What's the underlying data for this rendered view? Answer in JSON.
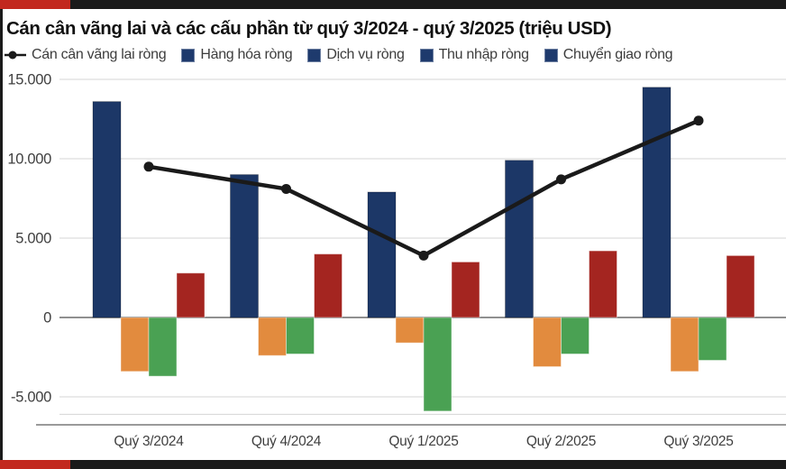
{
  "accent": {
    "red": "#c2281e",
    "black": "#1a1a1a"
  },
  "header": {
    "title": "Cán cân vãng lai và các cấu phần từ quý 3/2024 - quý 3/2025 (triệu USD)"
  },
  "legend": {
    "swatch_color": "#1e3a6d",
    "line_marker_color": "#1a1a1a",
    "items": [
      {
        "label": "Cán cân vãng lai ròng",
        "marker": "line-dot"
      },
      {
        "label": "Hàng hóa ròng",
        "marker": "square"
      },
      {
        "label": "Dịch vụ ròng",
        "marker": "square"
      },
      {
        "label": "Thu nhập ròng",
        "marker": "square"
      },
      {
        "label": "Chuyển giao ròng",
        "marker": "square"
      }
    ]
  },
  "chart_data": {
    "type": "bar",
    "subtype": "grouped bars with overlaid line",
    "title": "Cán cân vãng lai và các cấu phần từ quý 3/2024 - quý 3/2025 (triệu USD)",
    "unit": "triệu USD",
    "categories": [
      "Quý 3/2024",
      "Quý 4/2024",
      "Quý 1/2025",
      "Quý 2/2025",
      "Quý 3/2025"
    ],
    "bar_series": [
      {
        "name": "Hàng hóa ròng",
        "color": "#1c3767",
        "values": [
          13600,
          9000,
          7900,
          9900,
          14500
        ]
      },
      {
        "name": "Dịch vụ ròng",
        "color": "#e28b3e",
        "values": [
          -3400,
          -2400,
          -1600,
          -3100,
          -3400
        ]
      },
      {
        "name": "Thu nhập ròng",
        "color": "#4aa153",
        "values": [
          -3700,
          -2300,
          -5900,
          -2300,
          -2700
        ]
      },
      {
        "name": "Chuyển giao ròng",
        "color": "#a42520",
        "values": [
          2800,
          4000,
          3500,
          4200,
          3900
        ]
      }
    ],
    "line_series": {
      "name": "Cán cân vãng lai ròng",
      "color": "#1a1a1a",
      "values": [
        9500,
        8100,
        3900,
        8700,
        12400
      ]
    },
    "yticks": [
      {
        "value": 15000,
        "label": "15.000"
      },
      {
        "value": 10000,
        "label": "10.000"
      },
      {
        "value": 5000,
        "label": "5.000"
      },
      {
        "value": 0,
        "label": "0"
      },
      {
        "value": -5000,
        "label": "-5.000"
      }
    ],
    "ylim": [
      -6100,
      15000
    ],
    "grid": true,
    "legend_position": "top"
  }
}
